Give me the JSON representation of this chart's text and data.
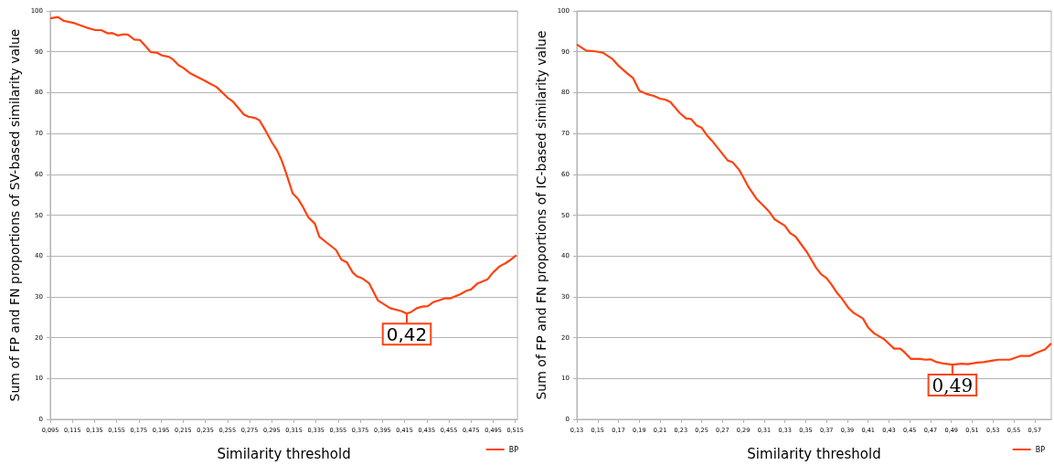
{
  "chart_data": [
    {
      "type": "line",
      "xlabel": "Similarity threshold",
      "ylabel": "Sum of FP and FN proportions of SV-based similarity value",
      "xlim": [
        0.095,
        0.517
      ],
      "ylim": [
        0,
        100
      ],
      "xticks": [
        {
          "value": 0.095,
          "label": "0,095"
        },
        {
          "value": 0.115,
          "label": "0,115"
        },
        {
          "value": 0.135,
          "label": "0,135"
        },
        {
          "value": 0.155,
          "label": "0,155"
        },
        {
          "value": 0.175,
          "label": "0,175"
        },
        {
          "value": 0.195,
          "label": "0,195"
        },
        {
          "value": 0.215,
          "label": "0,215"
        },
        {
          "value": 0.235,
          "label": "0,235"
        },
        {
          "value": 0.255,
          "label": "0,255"
        },
        {
          "value": 0.275,
          "label": "0,275"
        },
        {
          "value": 0.295,
          "label": "0,295"
        },
        {
          "value": 0.315,
          "label": "0,315"
        },
        {
          "value": 0.335,
          "label": "0,335"
        },
        {
          "value": 0.355,
          "label": "0,355"
        },
        {
          "value": 0.375,
          "label": "0,375"
        },
        {
          "value": 0.395,
          "label": "0,395"
        },
        {
          "value": 0.415,
          "label": "0,415"
        },
        {
          "value": 0.435,
          "label": "0,435"
        },
        {
          "value": 0.455,
          "label": "0,455"
        },
        {
          "value": 0.475,
          "label": "0,475"
        },
        {
          "value": 0.495,
          "label": "0,495"
        },
        {
          "value": 0.515,
          "label": "0,515"
        }
      ],
      "yticks": [
        0,
        10,
        20,
        30,
        40,
        50,
        60,
        70,
        80,
        90,
        100
      ],
      "grid": "y",
      "legend": "bottom right",
      "annotations": [
        {
          "text": "0,42",
          "x": 0.417,
          "y": 25.9
        }
      ],
      "series": [
        {
          "name": "BP",
          "color": "#ff420e",
          "x": [
            0.095,
            0.102,
            0.107,
            0.117,
            0.128,
            0.136,
            0.141,
            0.147,
            0.151,
            0.156,
            0.161,
            0.165,
            0.171,
            0.176,
            0.186,
            0.191,
            0.196,
            0.202,
            0.206,
            0.211,
            0.215,
            0.221,
            0.234,
            0.24,
            0.245,
            0.249,
            0.255,
            0.26,
            0.27,
            0.274,
            0.28,
            0.284,
            0.289,
            0.295,
            0.3,
            0.304,
            0.308,
            0.314,
            0.319,
            0.323,
            0.328,
            0.334,
            0.338,
            0.344,
            0.353,
            0.358,
            0.363,
            0.368,
            0.372,
            0.377,
            0.383,
            0.391,
            0.402,
            0.412,
            0.417,
            0.421,
            0.426,
            0.431,
            0.436,
            0.441,
            0.451,
            0.456,
            0.465,
            0.471,
            0.475,
            0.481,
            0.49,
            0.495,
            0.501,
            0.506,
            0.511,
            0.516
          ],
          "values": [
            98.2,
            98.5,
            97.6,
            97.0,
            95.9,
            95.3,
            95.3,
            94.5,
            94.6,
            94.0,
            94.3,
            94.2,
            93.0,
            92.9,
            89.9,
            89.8,
            89.1,
            88.8,
            88.1,
            86.7,
            86.1,
            84.8,
            83.0,
            82.1,
            81.4,
            80.4,
            78.8,
            77.8,
            74.6,
            74.1,
            73.8,
            73.2,
            70.9,
            67.9,
            65.8,
            63.4,
            60.3,
            55.3,
            53.9,
            52.1,
            49.5,
            47.9,
            44.7,
            43.4,
            41.5,
            39.1,
            38.4,
            36.0,
            35.0,
            34.5,
            33.3,
            29.1,
            27.2,
            26.5,
            25.9,
            26.3,
            27.2,
            27.6,
            27.7,
            28.7,
            29.6,
            29.6,
            30.6,
            31.5,
            31.8,
            33.3,
            34.3,
            36.0,
            37.5,
            38.2,
            39.1,
            40.2
          ]
        }
      ]
    },
    {
      "type": "line",
      "xlabel": "Similarity threshold",
      "ylabel": "Sum of FP and FN proportions of IC-based similarity value",
      "xlim": [
        0.13,
        0.586
      ],
      "ylim": [
        0,
        100
      ],
      "xticks": [
        {
          "value": 0.13,
          "label": "0,13"
        },
        {
          "value": 0.15,
          "label": "0,15"
        },
        {
          "value": 0.17,
          "label": "0,17"
        },
        {
          "value": 0.19,
          "label": "0,19"
        },
        {
          "value": 0.21,
          "label": "0,21"
        },
        {
          "value": 0.23,
          "label": "0,23"
        },
        {
          "value": 0.25,
          "label": "0,25"
        },
        {
          "value": 0.27,
          "label": "0,27"
        },
        {
          "value": 0.29,
          "label": "0,29"
        },
        {
          "value": 0.31,
          "label": "0,31"
        },
        {
          "value": 0.33,
          "label": "0,33"
        },
        {
          "value": 0.35,
          "label": "0,35"
        },
        {
          "value": 0.37,
          "label": "0,37"
        },
        {
          "value": 0.39,
          "label": "0,39"
        },
        {
          "value": 0.41,
          "label": "0,41"
        },
        {
          "value": 0.43,
          "label": "0,43"
        },
        {
          "value": 0.45,
          "label": "0,45"
        },
        {
          "value": 0.47,
          "label": "0,47"
        },
        {
          "value": 0.49,
          "label": "0,49"
        },
        {
          "value": 0.51,
          "label": "0,51"
        },
        {
          "value": 0.53,
          "label": "0,53"
        },
        {
          "value": 0.55,
          "label": "0,55"
        },
        {
          "value": 0.57,
          "label": "0,57"
        }
      ],
      "yticks": [
        0,
        10,
        20,
        30,
        40,
        50,
        60,
        70,
        80,
        90,
        100
      ],
      "grid": "y",
      "legend": "bottom right",
      "annotations": [
        {
          "text": "0,49",
          "x": 0.491,
          "y": 13.4
        }
      ],
      "series": [
        {
          "name": "BP",
          "color": "#ff420e",
          "x": [
            0.13,
            0.139,
            0.148,
            0.155,
            0.164,
            0.17,
            0.178,
            0.184,
            0.19,
            0.198,
            0.204,
            0.21,
            0.215,
            0.22,
            0.229,
            0.235,
            0.24,
            0.245,
            0.25,
            0.255,
            0.26,
            0.275,
            0.28,
            0.286,
            0.29,
            0.295,
            0.303,
            0.311,
            0.315,
            0.32,
            0.33,
            0.335,
            0.34,
            0.351,
            0.36,
            0.365,
            0.37,
            0.375,
            0.38,
            0.385,
            0.391,
            0.396,
            0.405,
            0.41,
            0.416,
            0.425,
            0.435,
            0.441,
            0.445,
            0.451,
            0.46,
            0.465,
            0.47,
            0.476,
            0.484,
            0.491,
            0.5,
            0.506,
            0.515,
            0.521,
            0.53,
            0.535,
            0.546,
            0.556,
            0.565,
            0.571,
            0.58,
            0.586
          ],
          "values": [
            91.8,
            90.3,
            90.1,
            89.8,
            88.3,
            86.6,
            84.8,
            83.6,
            80.5,
            79.6,
            79.2,
            78.5,
            78.3,
            77.7,
            75.0,
            73.7,
            73.5,
            72.0,
            71.4,
            69.6,
            68.2,
            63.4,
            62.9,
            61.1,
            59.3,
            56.9,
            53.9,
            51.9,
            50.8,
            49.0,
            47.4,
            45.6,
            44.8,
            41.0,
            37.1,
            35.5,
            34.6,
            32.9,
            31.0,
            29.5,
            27.3,
            26.1,
            24.7,
            22.5,
            21.0,
            19.7,
            17.3,
            17.3,
            16.4,
            14.8,
            14.8,
            14.6,
            14.7,
            14.0,
            13.6,
            13.4,
            13.6,
            13.5,
            13.9,
            14.0,
            14.4,
            14.6,
            14.6,
            15.5,
            15.5,
            16.2,
            17.1,
            18.6
          ]
        }
      ]
    }
  ]
}
